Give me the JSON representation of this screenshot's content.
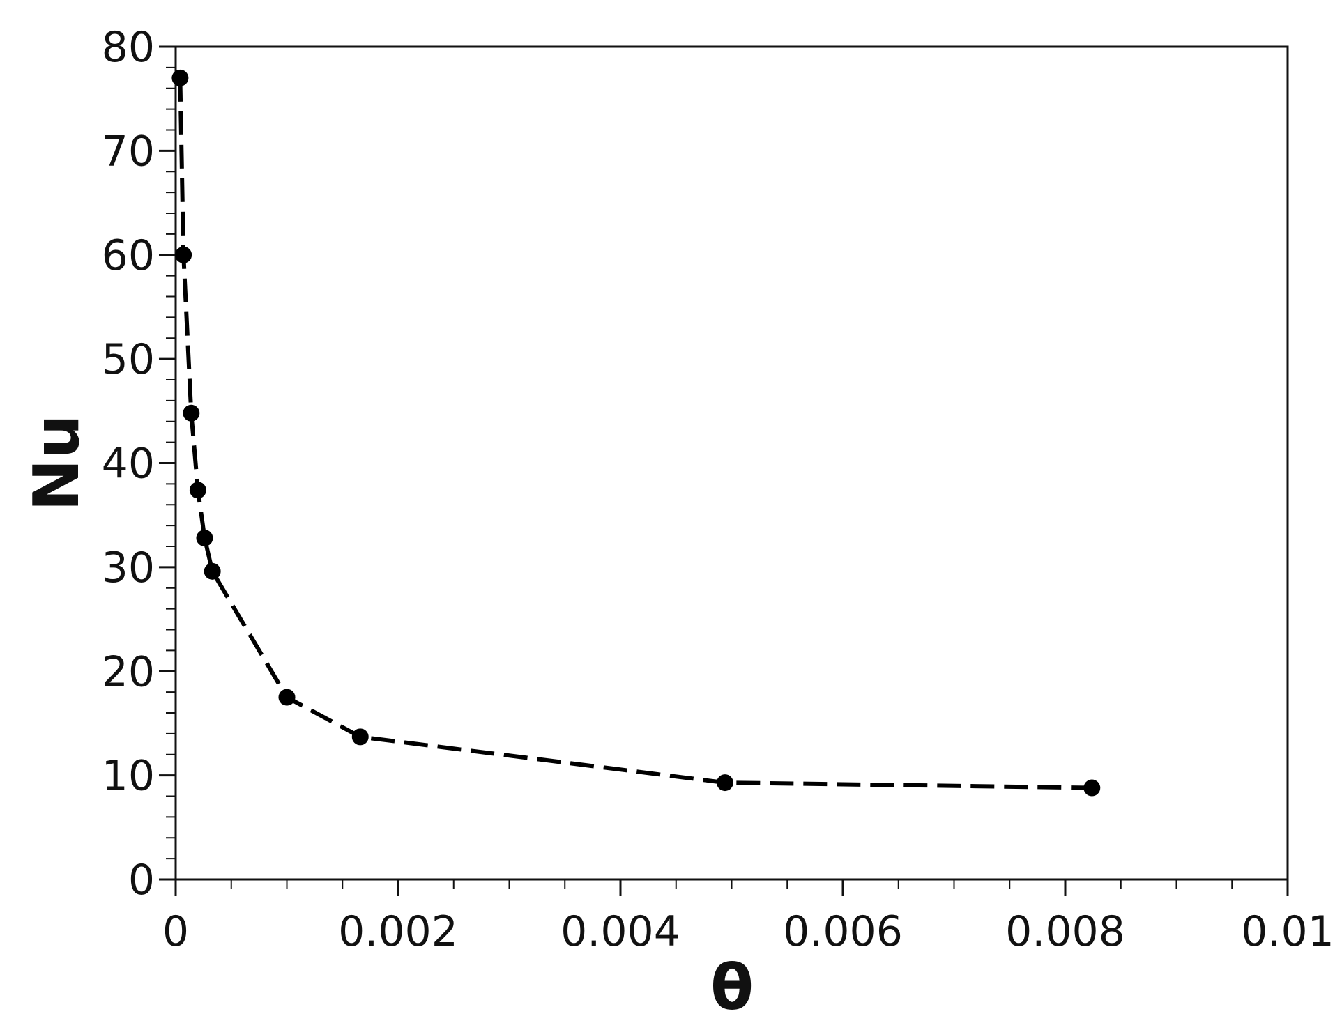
{
  "chart_data": {
    "type": "line",
    "title": "",
    "xlabel": "θ",
    "ylabel": "Nu",
    "xlim": [
      0,
      0.01
    ],
    "ylim": [
      0,
      80
    ],
    "grid": false,
    "line_style": "dashed",
    "marker": "filled-circle",
    "color": "#000000",
    "x_ticks": [
      0,
      0.002,
      0.004,
      0.006,
      0.008,
      0.01
    ],
    "x_tick_labels": [
      "0",
      "0.002",
      "0.004",
      "0.006",
      "0.008",
      "0.01"
    ],
    "y_ticks": [
      0,
      10,
      20,
      30,
      40,
      50,
      60,
      70,
      80
    ],
    "y_tick_labels": [
      "0",
      "10",
      "20",
      "30",
      "40",
      "50",
      "60",
      "70",
      "80"
    ],
    "series": [
      {
        "x": [
          4e-05,
          7e-05,
          0.00014,
          0.0002,
          0.00026,
          0.00033,
          0.001,
          0.00166,
          0.00494,
          0.00824
        ],
        "y": [
          77,
          60,
          44.8,
          37.4,
          32.8,
          29.6,
          17.5,
          13.7,
          9.3,
          8.8
        ]
      }
    ]
  }
}
